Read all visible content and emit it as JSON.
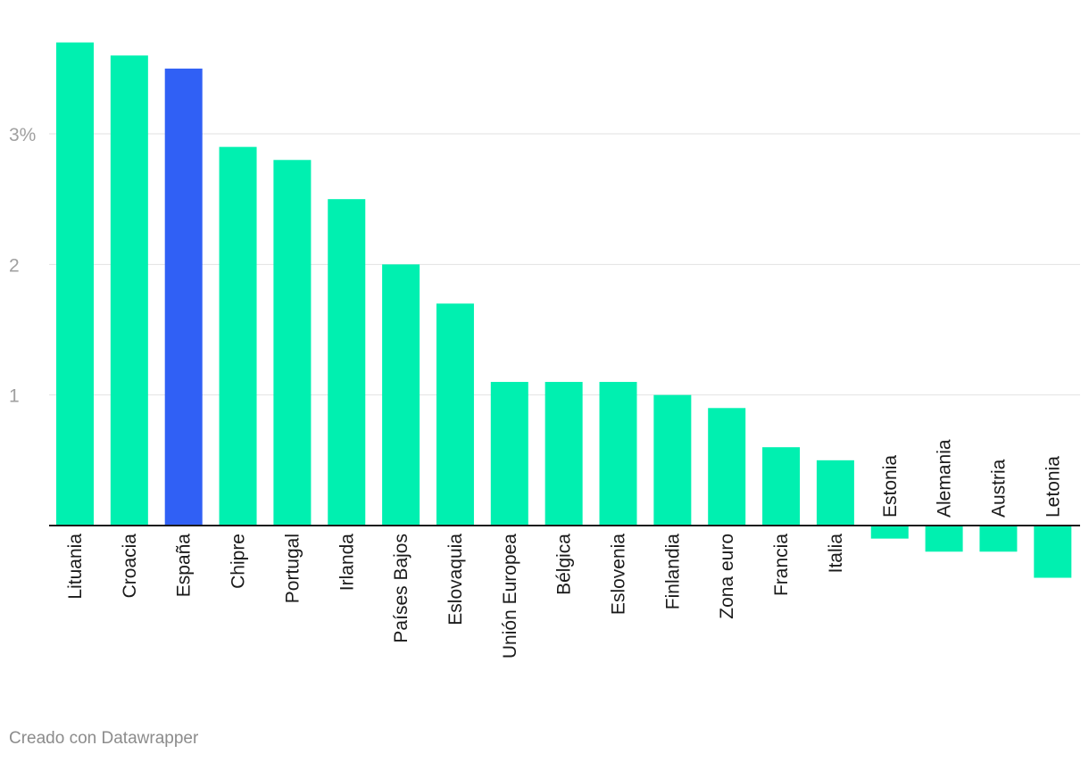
{
  "chart_data": {
    "type": "bar",
    "title": "",
    "xlabel": "",
    "ylabel": "",
    "categories": [
      "Lituania",
      "Croacia",
      "España",
      "Chipre",
      "Portugal",
      "Irlanda",
      "Países Bajos",
      "Eslovaquia",
      "Unión Europea",
      "Bélgica",
      "Eslovenia",
      "Finlandia",
      "Zona euro",
      "Francia",
      "Italia",
      "Estonia",
      "Alemania",
      "Austria",
      "Letonia"
    ],
    "values": [
      3.7,
      3.6,
      3.5,
      2.9,
      2.8,
      2.5,
      2.0,
      1.7,
      1.1,
      1.1,
      1.1,
      1.0,
      0.9,
      0.6,
      0.5,
      -0.1,
      -0.2,
      -0.2,
      -0.4
    ],
    "highlight": "España",
    "ylim": [
      -0.4,
      3.7
    ],
    "yticks": [
      1,
      2,
      3
    ],
    "ytick_labels": [
      "1",
      "2",
      "3%"
    ],
    "grid": true,
    "colors": {
      "default": "#00f0b0",
      "highlight": "#3060f5",
      "grid": "#e2e2e2",
      "axis": "#1a1a1a",
      "tick_text": "#a0a0a0"
    }
  },
  "footer": {
    "credit": "Creado con Datawrapper"
  }
}
